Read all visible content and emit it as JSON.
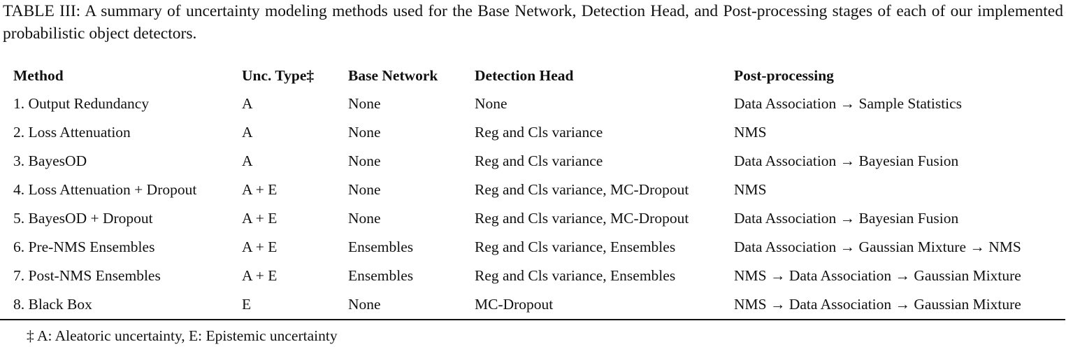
{
  "caption": "TABLE III: A summary of uncertainty modeling methods used for the Base Network, Detection Head, and Post-processing stages of each of our implemented probabilistic object detectors.",
  "table": {
    "headers": [
      "Method",
      "Unc. Type‡",
      "Base Network",
      "Detection Head",
      "Post-processing"
    ],
    "rows": [
      [
        "1. Output Redundancy",
        "A",
        "None",
        "None",
        "Data Association → Sample Statistics"
      ],
      [
        "2. Loss Attenuation",
        "A",
        "None",
        "Reg and Cls variance",
        "NMS"
      ],
      [
        "3. BayesOD",
        "A",
        "None",
        "Reg and Cls variance",
        "Data Association → Bayesian Fusion"
      ],
      [
        "4. Loss Attenuation + Dropout",
        "A + E",
        "None",
        "Reg and Cls variance, MC-Dropout",
        "NMS"
      ],
      [
        "5. BayesOD + Dropout",
        "A + E",
        "None",
        "Reg and Cls variance, MC-Dropout",
        "Data Association → Bayesian Fusion"
      ],
      [
        "6. Pre-NMS Ensembles",
        "A + E",
        "Ensembles",
        "Reg and Cls variance, Ensembles",
        "Data Association → Gaussian Mixture → NMS"
      ],
      [
        "7. Post-NMS Ensembles",
        "A + E",
        "Ensembles",
        "Reg and Cls variance, Ensembles",
        "NMS → Data Association → Gaussian Mixture"
      ],
      [
        "8. Black Box",
        "E",
        "None",
        "MC-Dropout",
        "NMS → Data Association → Gaussian Mixture"
      ]
    ]
  },
  "footnote": "‡ A: Aleatoric uncertainty, E: Epistemic uncertainty"
}
